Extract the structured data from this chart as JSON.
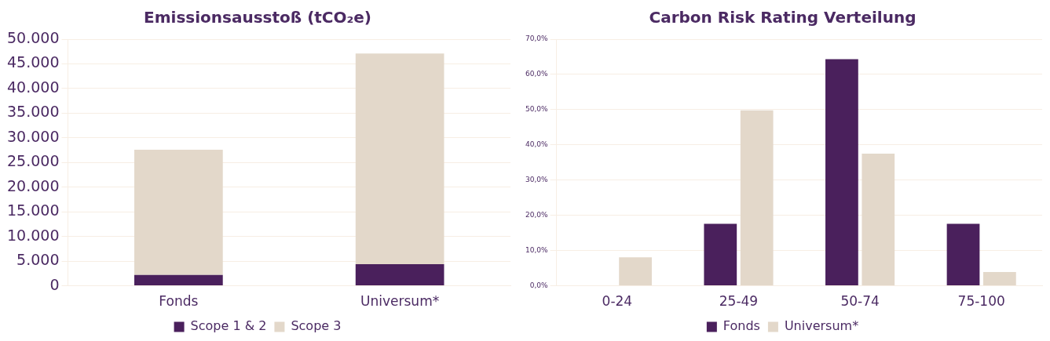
{
  "chart_data": [
    {
      "type": "bar",
      "title": "Emissionsausstoß (tCO₂e)",
      "categories": [
        "Fonds",
        "Universum*"
      ],
      "stacked": true,
      "series": [
        {
          "name": "Scope 1 & 2",
          "color": "#4a205c",
          "values": [
            2200,
            4400
          ]
        },
        {
          "name": "Scope 3",
          "color": "#e3d8ca",
          "values": [
            25400,
            42700
          ]
        }
      ],
      "ylim": [
        0,
        50000
      ],
      "yticks": [
        {
          "value": 0,
          "label": "0"
        },
        {
          "value": 5000,
          "label": "5.000"
        },
        {
          "value": 10000,
          "label": "10.000"
        },
        {
          "value": 15000,
          "label": "15.000"
        },
        {
          "value": 20000,
          "label": "20.000"
        },
        {
          "value": 25000,
          "label": "25.000"
        },
        {
          "value": 30000,
          "label": "30.000"
        },
        {
          "value": 35000,
          "label": "35.000"
        },
        {
          "value": 40000,
          "label": "40.000"
        },
        {
          "value": 45000,
          "label": "45.000"
        },
        {
          "value": 50000,
          "label": "50.000"
        }
      ],
      "grid": "y",
      "legend": "bottom"
    },
    {
      "type": "bar",
      "title": "Carbon Risk Rating Verteilung",
      "categories": [
        "0-24",
        "25-49",
        "50-74",
        "75-100"
      ],
      "series": [
        {
          "name": "Fonds",
          "color": "#4a205c",
          "values": [
            0,
            17.6,
            64.3,
            17.6
          ]
        },
        {
          "name": "Universum*",
          "color": "#e3d8ca",
          "values": [
            8.1,
            49.8,
            37.5,
            3.9
          ]
        }
      ],
      "ylim": [
        0,
        70
      ],
      "yticks": [
        {
          "value": 0,
          "label": "0,0%"
        },
        {
          "value": 10,
          "label": "10,0%"
        },
        {
          "value": 20,
          "label": "20,0%"
        },
        {
          "value": 30,
          "label": "30,0%"
        },
        {
          "value": 40,
          "label": "40,0%"
        },
        {
          "value": 50,
          "label": "50,0%"
        },
        {
          "value": 60,
          "label": "60,0%"
        },
        {
          "value": 70,
          "label": "70,0%"
        }
      ],
      "grid": "y",
      "legend": "bottom"
    }
  ]
}
